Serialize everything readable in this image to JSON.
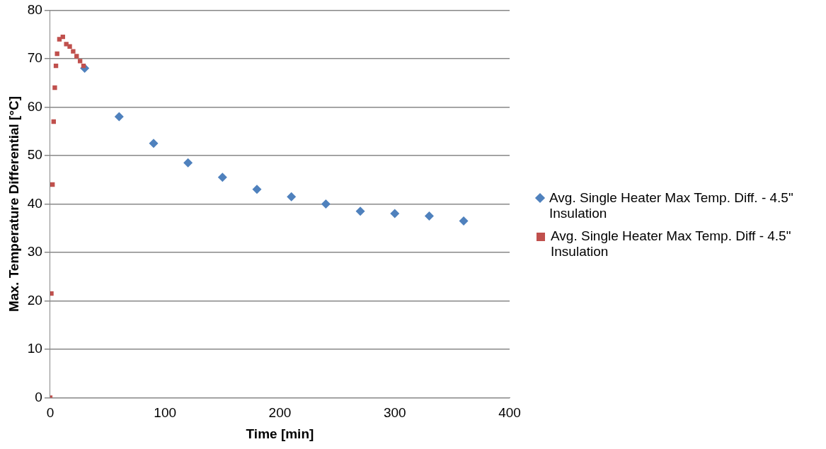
{
  "chart_data": {
    "type": "scatter",
    "xlabel": "Time [min]",
    "ylabel": "Max. Temperature Differential [°C]",
    "xlim": [
      0,
      400
    ],
    "xticks": [
      0,
      100,
      200,
      300,
      400
    ],
    "ylim": [
      0,
      80
    ],
    "yticks": [
      0,
      10,
      20,
      30,
      40,
      50,
      60,
      70,
      80
    ],
    "grid": "y",
    "legend": "right",
    "series": [
      {
        "name": "Avg. Single Heater Max Temp. Diff. - 4.5\" Insulation",
        "color": "#4f81bd",
        "marker": "diamond",
        "x": [
          30,
          60,
          90,
          120,
          150,
          180,
          210,
          240,
          270,
          300,
          330,
          360
        ],
        "values": [
          68,
          58,
          52.5,
          48.5,
          45.5,
          43,
          41.5,
          40,
          38.5,
          38,
          37.5,
          36.5
        ]
      },
      {
        "name": "Avg. Single Heater Max Temp. Diff - 4.5\" Insulation",
        "color": "#c0504d",
        "marker": "square",
        "x": [
          0,
          1,
          2,
          3,
          4,
          5,
          6,
          8,
          11,
          14,
          17,
          20,
          23,
          26,
          29
        ],
        "values": [
          0,
          21.5,
          44,
          57,
          64,
          68.5,
          71,
          74,
          74.5,
          73,
          72.5,
          71.5,
          70.5,
          69.5,
          68.5
        ]
      }
    ]
  }
}
